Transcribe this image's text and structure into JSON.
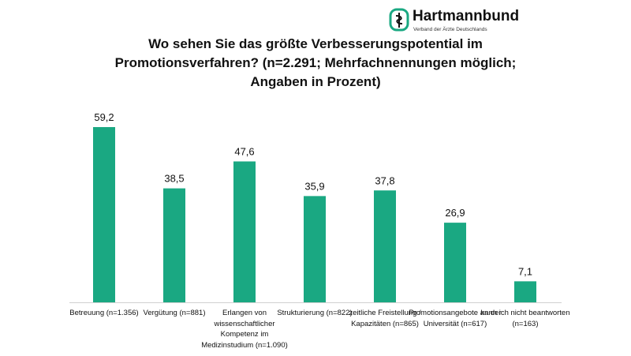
{
  "logo": {
    "brand": "Hartmannbund",
    "subtitle": "Verband der Ärzte Deutschlands",
    "icon": "caduceus-icon",
    "color": "#1aa882"
  },
  "chart_data": {
    "type": "bar",
    "title": "Wo sehen Sie das größte Verbesserungspotential im Promotionsverfahren? (n=2.291; Mehrfachnennungen möglich; Angaben in Prozent)",
    "categories": [
      "Betreuung (n=1.356)",
      "Vergütung (n=881)",
      "Erlangen von wissenschaftlicher Kompetenz im Medizinstudium (n=1.090)",
      "Strukturierung (n=822)",
      "zeitliche Freistellung / Kapazitäten (n=865)",
      "Promotionsangebote an der Universität (n=617)",
      "kann ich nicht beantworten (n=163)"
    ],
    "values": [
      59.2,
      38.5,
      47.6,
      35.9,
      37.8,
      26.9,
      7.1
    ],
    "value_labels": [
      "59,2",
      "38,5",
      "47,6",
      "35,9",
      "37,8",
      "26,9",
      "7,1"
    ],
    "ylim": [
      0,
      60
    ],
    "grid": false,
    "bar_color": "#1aa882"
  }
}
